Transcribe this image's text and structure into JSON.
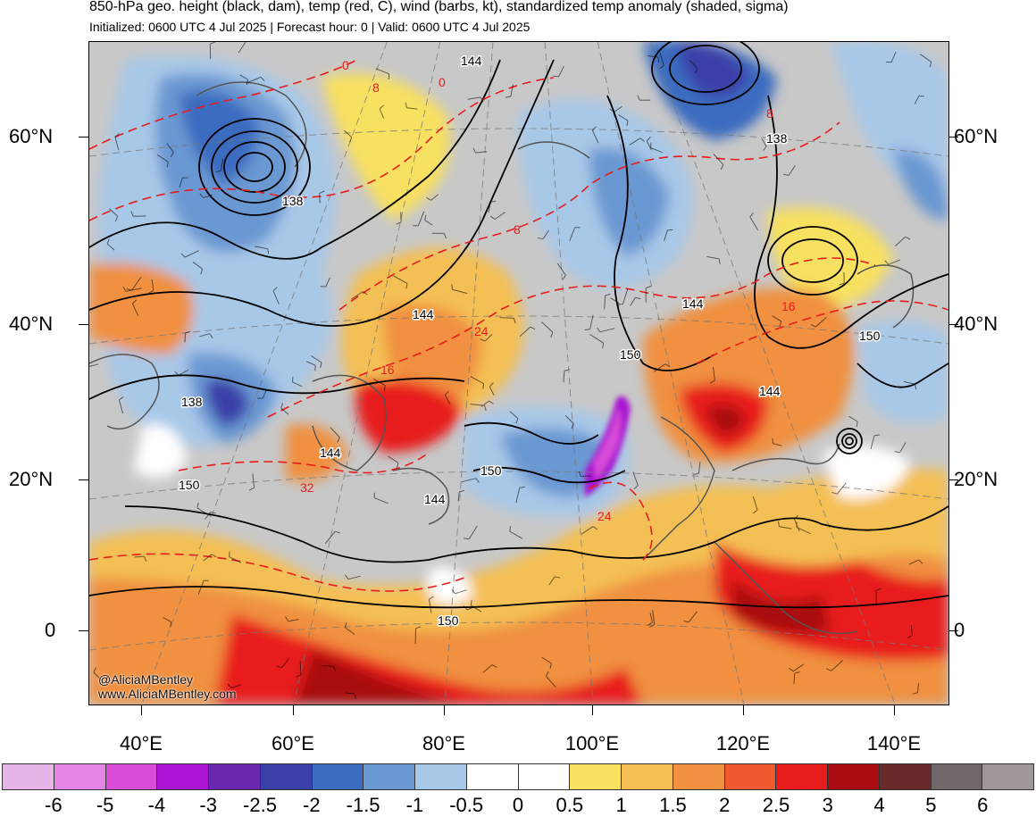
{
  "title": "850-hPa geo. height (black, dam), temp (red, C), wind (barbs, kt), standardized temp anomaly (shaded, sigma)",
  "subtitle": "Initialized: 0600 UTC 4 Jul 2025 | Forecast hour: 0 | Valid: 0600 UTC 4 Jul 2025",
  "lat_labels": [
    "60°N",
    "40°N",
    "20°N",
    "0"
  ],
  "lon_labels": [
    "40°E",
    "60°E",
    "80°E",
    "100°E",
    "120°E",
    "140°E"
  ],
  "credits": {
    "handle": "@AliciaMBentley",
    "site": "www.AliciaMBentley.com"
  },
  "height_contour_labels": [
    "144",
    "138",
    "138",
    "144",
    "138",
    "150",
    "144",
    "144",
    "150",
    "144",
    "150",
    "150",
    "144",
    "150"
  ],
  "temp_contour_labels": [
    "0",
    "8",
    "0",
    "8",
    "8",
    "16",
    "24",
    "16",
    "24",
    "32"
  ],
  "colorbar": {
    "ticks": [
      "-6",
      "-5",
      "-4",
      "-3",
      "-2.5",
      "-2",
      "-1.5",
      "-1",
      "-0.5",
      "0",
      "0.5",
      "1",
      "1.5",
      "2",
      "2.5",
      "3",
      "4",
      "5",
      "6"
    ],
    "colors": [
      "#e6b4e6",
      "#e484e4",
      "#d84cd8",
      "#aa14d2",
      "#6a28b0",
      "#3a40a8",
      "#3a6cc0",
      "#6a98d2",
      "#a8c8e8",
      "#ffffff",
      "#ffffff",
      "#f8e060",
      "#f4c054",
      "#f09040",
      "#f05a30",
      "#e81c1c",
      "#a80c10",
      "#6a2a2a",
      "#706868",
      "#a09898"
    ]
  },
  "colors": {
    "warm": "#e81c1c",
    "cold": "#3a6cc0",
    "neutral": "#c8c8c8"
  }
}
